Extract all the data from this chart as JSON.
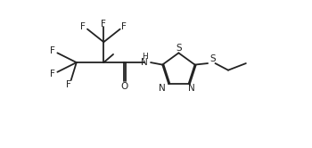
{
  "bg_color": "#ffffff",
  "line_color": "#222222",
  "lw": 1.3,
  "fs": 7.5,
  "figsize": [
    3.5,
    1.66
  ],
  "dpi": 100,
  "xlim": [
    0.05,
    3.6
  ],
  "ylim": [
    0.1,
    1.7
  ]
}
